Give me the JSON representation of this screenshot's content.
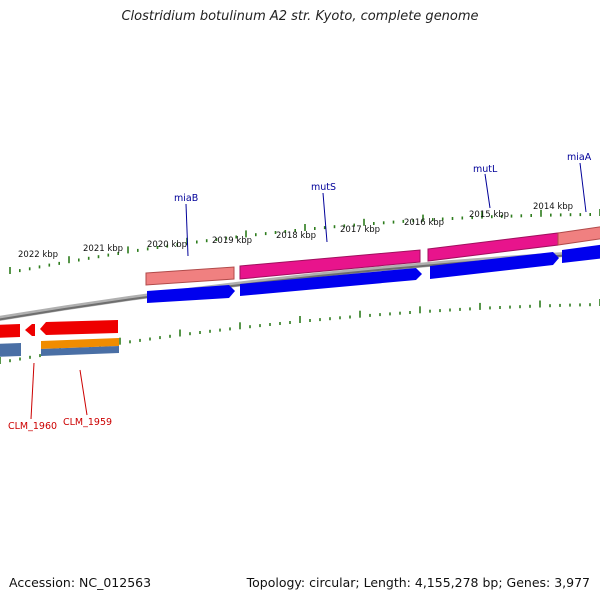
{
  "title": "Clostridium botulinum A2 str. Kyoto, complete genome",
  "footer": {
    "accession": "Accession: NC_012563",
    "summary": "Topology: circular; Length: 4,155,278 bp; Genes: 3,977"
  },
  "scale_labels": [
    "2022 kbp",
    "2021 kbp",
    "2020 kbp",
    "2019 kbp",
    "2018 kbp",
    "2017 kbp",
    "2016 kbp",
    "2015 kbp",
    "2014 kbp"
  ],
  "gene_labels": {
    "top": [
      "miaB",
      "mutS",
      "mutL",
      "miaA"
    ],
    "bottom": [
      "CLM_1960",
      "CLM_1959"
    ]
  },
  "colors": {
    "title_text": "#222222",
    "top_label": "#000099",
    "bottom_label": "#cc0000",
    "tick": "#2e7d1e",
    "backbone": "#808080",
    "magenta_feature": "#e8148c",
    "pink_feature": "#f08080",
    "blue_feature": "#0000ee",
    "red_feature": "#ee0000",
    "orange_feature": "#f08c00",
    "steel_feature": "#4a6fa5"
  }
}
